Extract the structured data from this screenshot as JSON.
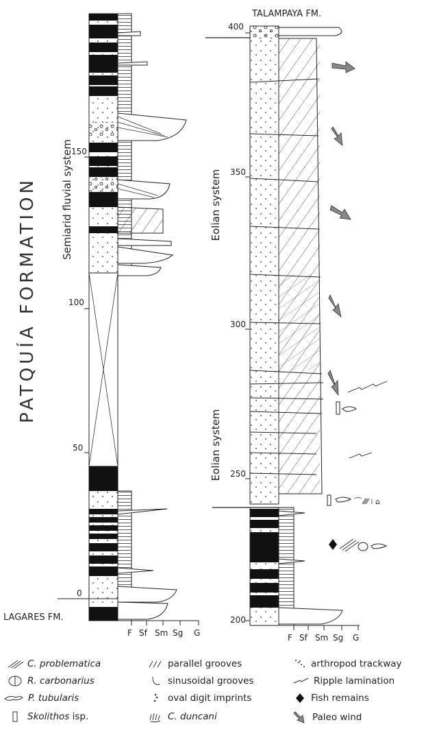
{
  "titles": {
    "formation": "PATQUÍA FORMATION",
    "top_unit": "TALAMPAYA FM.",
    "base_unit": "LAGARES FM.",
    "left_system": "Semiarid fluvial system",
    "right_upper_system": "Eolian system",
    "right_lower_system": "Eolian system"
  },
  "scale_left": [
    "150",
    "100",
    "50",
    "0"
  ],
  "scale_right": [
    "400",
    "350",
    "300",
    "250",
    "200"
  ],
  "grain_labels": [
    "F",
    "Sf",
    "Sm",
    "Sg",
    "G"
  ],
  "legend": [
    {
      "icon": "c-problematica-icon",
      "label": "C. problematica",
      "italic": true,
      "suffix": ""
    },
    {
      "icon": "parallel-grooves-icon",
      "label": "parallel grooves",
      "italic": false,
      "suffix": ""
    },
    {
      "icon": "arthropod-trackway-icon",
      "label": "arthropod trackway",
      "italic": false,
      "suffix": ""
    },
    {
      "icon": "r-carbonarius-icon",
      "label": "R. carbonarius",
      "italic": true,
      "suffix": ""
    },
    {
      "icon": "sinusoidal-grooves-icon",
      "label": "sinusoidal grooves",
      "italic": false,
      "suffix": ""
    },
    {
      "icon": "ripple-lamination-icon",
      "label": "Ripple lamination",
      "italic": false,
      "suffix": ""
    },
    {
      "icon": "p-tubularis-icon",
      "label": "P. tubularis",
      "italic": true,
      "suffix": ""
    },
    {
      "icon": "oval-digit-imprints-icon",
      "label": "oval digit imprints",
      "italic": false,
      "suffix": ""
    },
    {
      "icon": "fish-remains-icon",
      "label": "Fish remains",
      "italic": false,
      "suffix": ""
    },
    {
      "icon": "skolithos-icon",
      "label": "Skolithos",
      "italic": true,
      "suffix": " isp."
    },
    {
      "icon": "c-duncani-icon",
      "label": "C. duncani",
      "italic": true,
      "suffix": ""
    },
    {
      "icon": "paleo-wind-icon",
      "label": "Paleo wind",
      "italic": false,
      "suffix": ""
    }
  ]
}
